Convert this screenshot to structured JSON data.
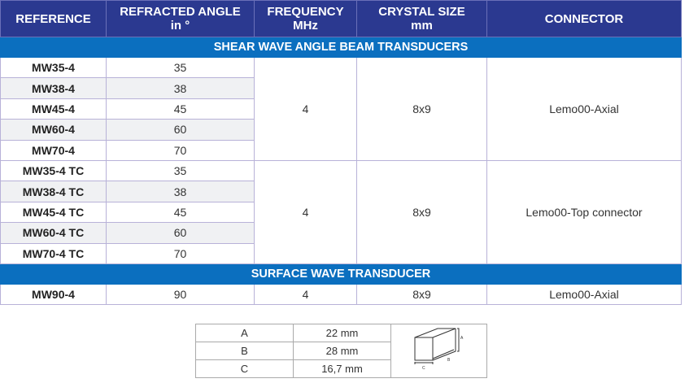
{
  "header": [
    "REFERENCE",
    "REFRACTED ANGLE",
    "in °",
    "FREQUENCY",
    "MHz",
    "CRYSTAL SIZE",
    "mm",
    "CONNECTOR"
  ],
  "groups": [
    {
      "title": "SHEAR WAVE ANGLE BEAM TRANSDUCERS",
      "blocks": [
        {
          "rows": [
            [
              "MW35-4",
              "35"
            ],
            [
              "MW38-4",
              "38"
            ],
            [
              "MW45-4",
              "45"
            ],
            [
              "MW60-4",
              "60"
            ],
            [
              "MW70-4",
              "70"
            ]
          ],
          "frequency": "4",
          "crystal": "8x9",
          "connector": "Lemo00-Axial"
        },
        {
          "rows": [
            [
              "MW35-4 TC",
              "35"
            ],
            [
              "MW38-4 TC",
              "38"
            ],
            [
              "MW45-4 TC",
              "45"
            ],
            [
              "MW60-4 TC",
              "60"
            ],
            [
              "MW70-4 TC",
              "70"
            ]
          ],
          "frequency": "4",
          "crystal": "8x9",
          "connector": "Lemo00-Top connector"
        }
      ]
    },
    {
      "title": "SURFACE WAVE TRANSDUCER",
      "blocks": [
        {
          "rows": [
            [
              "MW90-4",
              "90"
            ]
          ],
          "frequency": "4",
          "crystal": "8x9",
          "connector": "Lemo00-Axial"
        }
      ]
    }
  ],
  "dimensions": [
    [
      "A",
      "22 mm"
    ],
    [
      "B",
      "28 mm"
    ],
    [
      "C",
      "16,7 mm"
    ]
  ],
  "diagram_labels": [
    "A",
    "B",
    "C"
  ],
  "colors": {
    "header": "#2b3990",
    "band": "#0b6fbf",
    "alt_row": "#f0f1f3"
  }
}
